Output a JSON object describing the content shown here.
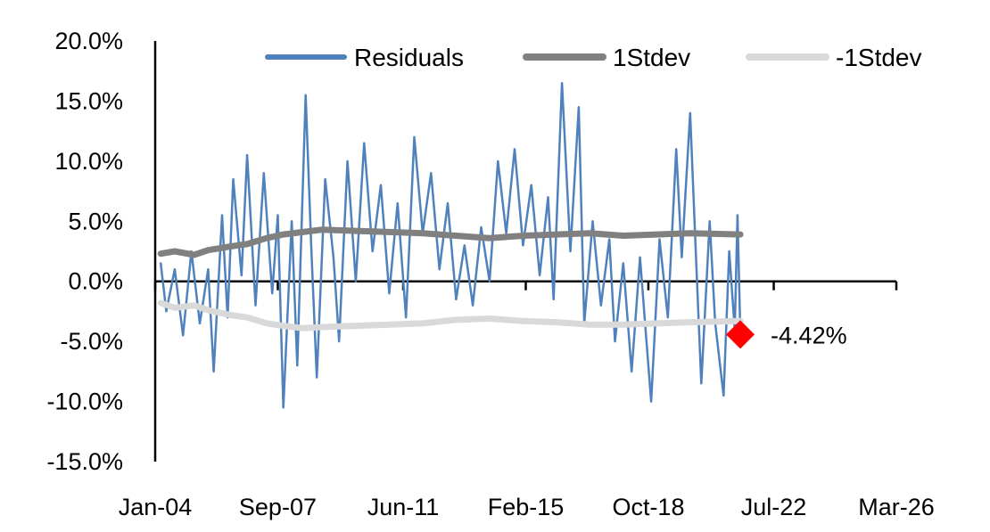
{
  "chart_data": {
    "type": "line",
    "x_axis": {
      "type": "date",
      "ticks": [
        "Jan-04",
        "Sep-07",
        "Jun-11",
        "Feb-15",
        "Oct-18",
        "Jul-22",
        "Mar-26"
      ],
      "range": [
        "2004-01",
        "2026-03"
      ]
    },
    "y_axis": {
      "ticks": [
        "20.0%",
        "15.0%",
        "10.0%",
        "5.0%",
        "0.0%",
        "-5.0%",
        "-10.0%",
        "-15.0%"
      ],
      "ylim": [
        -15,
        20
      ]
    },
    "legend": {
      "position": "top",
      "entries": [
        "Residuals",
        "1Stdev",
        "-1Stdev"
      ]
    },
    "grid": false,
    "series": [
      {
        "name": "Residuals",
        "color": "#4F81BD",
        "values": [
          [
            "2004-03",
            1.5
          ],
          [
            "2004-05",
            -2.5
          ],
          [
            "2004-08",
            1.0
          ],
          [
            "2004-11",
            -4.5
          ],
          [
            "2005-02",
            2.5
          ],
          [
            "2005-05",
            -3.5
          ],
          [
            "2005-08",
            1.0
          ],
          [
            "2005-10",
            -7.5
          ],
          [
            "2006-01",
            5.5
          ],
          [
            "2006-03",
            -3.0
          ],
          [
            "2006-05",
            8.5
          ],
          [
            "2006-08",
            0.5
          ],
          [
            "2006-10",
            10.5
          ],
          [
            "2007-01",
            -2.0
          ],
          [
            "2007-04",
            9.0
          ],
          [
            "2007-07",
            -1.0
          ],
          [
            "2007-09",
            5.5
          ],
          [
            "2007-11",
            -10.5
          ],
          [
            "2008-02",
            5.0
          ],
          [
            "2008-04",
            -7.0
          ],
          [
            "2008-07",
            15.5
          ],
          [
            "2008-09",
            3.0
          ],
          [
            "2008-11",
            -8.0
          ],
          [
            "2009-02",
            8.5
          ],
          [
            "2009-05",
            2.0
          ],
          [
            "2009-07",
            -5.0
          ],
          [
            "2009-10",
            10.0
          ],
          [
            "2010-01",
            0.0
          ],
          [
            "2010-04",
            11.5
          ],
          [
            "2010-07",
            2.5
          ],
          [
            "2010-10",
            8.0
          ],
          [
            "2011-01",
            -1.0
          ],
          [
            "2011-04",
            6.5
          ],
          [
            "2011-07",
            -3.0
          ],
          [
            "2011-10",
            12.0
          ],
          [
            "2012-01",
            4.0
          ],
          [
            "2012-04",
            9.0
          ],
          [
            "2012-07",
            1.0
          ],
          [
            "2012-10",
            6.5
          ],
          [
            "2013-01",
            -1.5
          ],
          [
            "2013-04",
            3.0
          ],
          [
            "2013-07",
            -2.0
          ],
          [
            "2013-10",
            4.5
          ],
          [
            "2014-01",
            0.0
          ],
          [
            "2014-04",
            10.0
          ],
          [
            "2014-07",
            4.0
          ],
          [
            "2014-10",
            11.0
          ],
          [
            "2015-01",
            3.0
          ],
          [
            "2015-04",
            8.0
          ],
          [
            "2015-07",
            0.5
          ],
          [
            "2015-10",
            7.0
          ],
          [
            "2015-12",
            -1.5
          ],
          [
            "2016-03",
            16.5
          ],
          [
            "2016-06",
            2.5
          ],
          [
            "2016-09",
            14.5
          ],
          [
            "2016-11",
            -3.5
          ],
          [
            "2017-02",
            5.0
          ],
          [
            "2017-05",
            -2.0
          ],
          [
            "2017-08",
            3.5
          ],
          [
            "2017-10",
            -5.0
          ],
          [
            "2018-01",
            1.5
          ],
          [
            "2018-04",
            -7.5
          ],
          [
            "2018-07",
            2.0
          ],
          [
            "2018-09",
            -4.0
          ],
          [
            "2018-11",
            -10.0
          ],
          [
            "2019-02",
            3.5
          ],
          [
            "2019-05",
            -3.0
          ],
          [
            "2019-08",
            11.0
          ],
          [
            "2019-10",
            2.0
          ],
          [
            "2020-01",
            14.0
          ],
          [
            "2020-03",
            2.5
          ],
          [
            "2020-05",
            -8.5
          ],
          [
            "2020-08",
            5.0
          ],
          [
            "2020-10",
            -3.5
          ],
          [
            "2021-01",
            -9.5
          ],
          [
            "2021-03",
            2.5
          ],
          [
            "2021-05",
            -4.0
          ],
          [
            "2021-06",
            5.5
          ],
          [
            "2021-07",
            -4.4
          ]
        ]
      },
      {
        "name": "1Stdev",
        "color": "#808080",
        "values": [
          [
            "2004-03",
            2.3
          ],
          [
            "2004-08",
            2.5
          ],
          [
            "2005-03",
            2.2
          ],
          [
            "2005-08",
            2.6
          ],
          [
            "2006-04",
            2.9
          ],
          [
            "2006-10",
            3.1
          ],
          [
            "2007-05",
            3.6
          ],
          [
            "2007-11",
            3.9
          ],
          [
            "2008-06",
            4.1
          ],
          [
            "2009-01",
            4.3
          ],
          [
            "2010-01",
            4.2
          ],
          [
            "2011-01",
            4.1
          ],
          [
            "2012-01",
            4.0
          ],
          [
            "2013-01",
            3.8
          ],
          [
            "2014-01",
            3.6
          ],
          [
            "2015-01",
            3.8
          ],
          [
            "2016-01",
            3.9
          ],
          [
            "2017-01",
            4.0
          ],
          [
            "2018-01",
            3.8
          ],
          [
            "2019-01",
            3.9
          ],
          [
            "2020-01",
            4.0
          ],
          [
            "2021-07",
            3.9
          ]
        ]
      },
      {
        "name": "-1Stdev",
        "color": "#D9D9D9",
        "values": [
          [
            "2004-03",
            -1.8
          ],
          [
            "2004-08",
            -2.2
          ],
          [
            "2005-03",
            -2.0
          ],
          [
            "2005-08",
            -2.4
          ],
          [
            "2006-04",
            -2.8
          ],
          [
            "2006-10",
            -3.0
          ],
          [
            "2007-05",
            -3.5
          ],
          [
            "2007-11",
            -3.7
          ],
          [
            "2008-06",
            -3.9
          ],
          [
            "2009-01",
            -3.8
          ],
          [
            "2010-01",
            -3.7
          ],
          [
            "2011-01",
            -3.6
          ],
          [
            "2012-01",
            -3.5
          ],
          [
            "2013-01",
            -3.2
          ],
          [
            "2014-01",
            -3.1
          ],
          [
            "2015-01",
            -3.3
          ],
          [
            "2016-01",
            -3.4
          ],
          [
            "2017-01",
            -3.6
          ],
          [
            "2018-01",
            -3.6
          ],
          [
            "2019-01",
            -3.5
          ],
          [
            "2020-01",
            -3.4
          ],
          [
            "2021-07",
            -3.3
          ]
        ]
      }
    ],
    "annotation": {
      "label": "-4.42%",
      "x": "2021-07",
      "y": -4.42,
      "color": "#FF0000",
      "marker": "diamond"
    }
  }
}
